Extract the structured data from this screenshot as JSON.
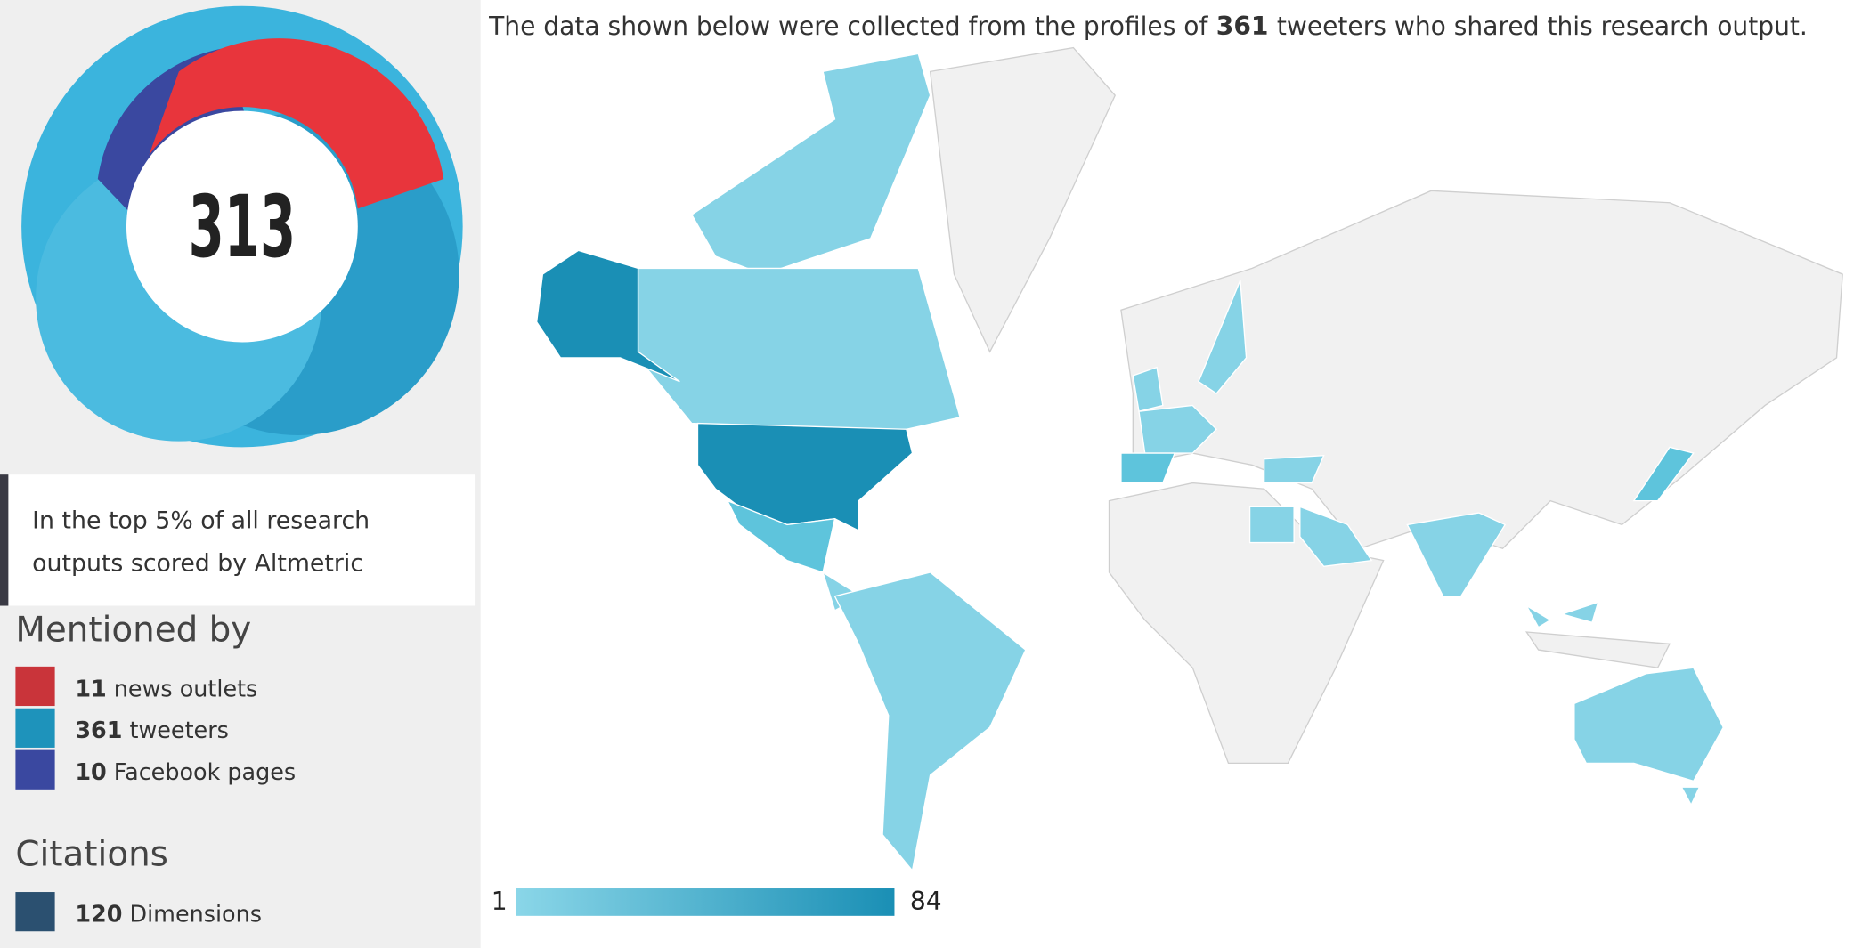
{
  "score": "313",
  "badge": {
    "lines": [
      "In the top 5% of all research",
      "outputs scored by Altmetric"
    ]
  },
  "mentioned_by": {
    "title": "Mentioned by",
    "items": [
      {
        "count": 11,
        "label": "news outlets",
        "color": "#c9343a"
      },
      {
        "count": 361,
        "label": "tweeters",
        "color": "#1e93bb"
      },
      {
        "count": 10,
        "label": "Facebook pages",
        "color": "#3a48a0"
      }
    ]
  },
  "citations": {
    "title": "Citations",
    "items": [
      {
        "count": 120,
        "label": "Dimensions",
        "color": "#2b5070"
      }
    ]
  },
  "map": {
    "caption": {
      "before": "The data shown below were collected from the profiles of",
      "count": 361,
      "after": "tweeters who shared this research output."
    },
    "legend": {
      "min": 1,
      "max": 84,
      "min_color": "#8ad6e8",
      "max_color": "#1a8fb5"
    }
  }
}
